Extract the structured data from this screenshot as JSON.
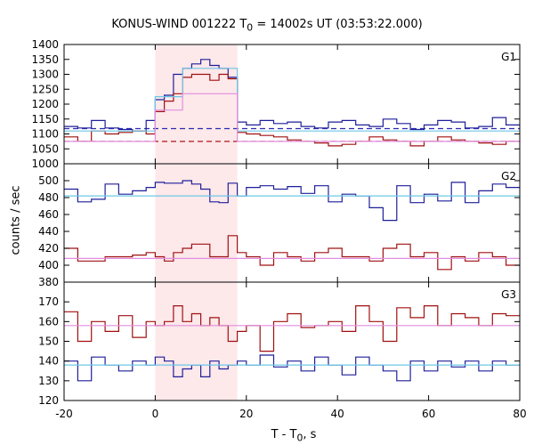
{
  "title_prefix": "KONUS-WIND 001222 T",
  "title_sub": "0",
  "title_suffix": " = 14002s UT (03:53:22.000)",
  "xlabel_prefix": "T - T",
  "xlabel_sub": "0",
  "xlabel_suffix": ", s",
  "ylabel": "counts / sec",
  "colors": {
    "blue": "#1f1f9a",
    "red": "#a01010",
    "cyan": "#6ec8e6",
    "pink": "#e28ee0",
    "shade": "#fde8ea",
    "bgdash_blue": "#2a2ab0",
    "bgdash_red": "#b01818"
  },
  "chart_data": {
    "type": "line",
    "title": "KONUS-WIND 001222 T0 = 14002s UT (03:53:22.000)",
    "xlabel": "T - T0, s",
    "ylabel": "counts / sec",
    "xlim": [
      -20,
      80
    ],
    "x_ticks": [
      -20,
      0,
      20,
      40,
      60,
      80
    ],
    "shaded_interval": [
      0,
      18
    ],
    "panels": [
      {
        "name": "G1",
        "ylim": [
          1000,
          1400
        ],
        "y_ticks": [
          1000,
          1050,
          1100,
          1150,
          1200,
          1250,
          1300,
          1350,
          1400
        ],
        "background_levels": {
          "blue": 1118,
          "red": 1075
        },
        "series": [
          {
            "color": "blue",
            "bin_edges": [
              -20,
              -17,
              -14,
              -11,
              -8,
              -5,
              -2,
              0,
              2,
              4,
              6,
              8,
              10,
              12,
              14,
              16,
              18,
              20,
              23,
              26,
              29,
              32,
              35,
              38,
              41,
              44,
              47,
              50,
              53,
              56,
              59,
              62,
              65,
              68,
              71,
              74,
              77,
              80
            ],
            "values": [
              1125,
              1120,
              1145,
              1120,
              1115,
              1110,
              1145,
              1215,
              1230,
              1300,
              1320,
              1335,
              1350,
              1330,
              1320,
              1290,
              1140,
              1130,
              1145,
              1135,
              1140,
              1125,
              1120,
              1140,
              1145,
              1130,
              1125,
              1150,
              1135,
              1115,
              1130,
              1145,
              1140,
              1120,
              1125,
              1155,
              1130
            ]
          },
          {
            "color": "red",
            "bin_edges": [
              -20,
              -17,
              -14,
              -11,
              -8,
              -5,
              -2,
              0,
              2,
              4,
              6,
              8,
              10,
              12,
              14,
              16,
              18,
              20,
              23,
              26,
              29,
              32,
              35,
              38,
              41,
              44,
              47,
              50,
              53,
              56,
              59,
              62,
              65,
              68,
              71,
              74,
              77,
              80
            ],
            "values": [
              1090,
              1075,
              1110,
              1100,
              1105,
              1110,
              1100,
              1175,
              1210,
              1235,
              1290,
              1300,
              1300,
              1280,
              1300,
              1285,
              1105,
              1100,
              1095,
              1090,
              1080,
              1075,
              1070,
              1060,
              1065,
              1075,
              1090,
              1080,
              1075,
              1060,
              1075,
              1090,
              1080,
              1075,
              1070,
              1065,
              1075
            ]
          }
        ],
        "fits": [
          {
            "color": "cyan",
            "x": [
              -20,
              0,
              0,
              6,
              6,
              18,
              18,
              80
            ],
            "y": [
              1110,
              1110,
              1225,
              1225,
              1320,
              1320,
              1110,
              1110
            ]
          },
          {
            "color": "pink",
            "x": [
              -20,
              0,
              0,
              6,
              6,
              18,
              18,
              80
            ],
            "y": [
              1075,
              1075,
              1180,
              1180,
              1235,
              1235,
              1075,
              1075
            ]
          }
        ]
      },
      {
        "name": "G2",
        "ylim": [
          380,
          520
        ],
        "y_ticks": [
          380,
          400,
          420,
          440,
          460,
          480,
          500
        ],
        "series": [
          {
            "color": "blue",
            "bin_edges": [
              -20,
              -17,
              -14,
              -11,
              -8,
              -5,
              -2,
              0,
              2,
              4,
              6,
              8,
              10,
              12,
              14,
              16,
              18,
              20,
              23,
              26,
              29,
              32,
              35,
              38,
              41,
              44,
              47,
              50,
              53,
              56,
              59,
              62,
              65,
              68,
              71,
              74,
              77,
              80
            ],
            "values": [
              490,
              475,
              478,
              496,
              484,
              488,
              492,
              498,
              497,
              497,
              500,
              496,
              490,
              475,
              474,
              497,
              482,
              492,
              494,
              490,
              493,
              485,
              494,
              475,
              484,
              482,
              468,
              453,
              494,
              474,
              484,
              476,
              498,
              474,
              488,
              496,
              492
            ]
          },
          {
            "color": "red",
            "bin_edges": [
              -20,
              -17,
              -14,
              -11,
              -8,
              -5,
              -2,
              0,
              2,
              4,
              6,
              8,
              10,
              12,
              14,
              16,
              18,
              20,
              23,
              26,
              29,
              32,
              35,
              38,
              41,
              44,
              47,
              50,
              53,
              56,
              59,
              62,
              65,
              68,
              71,
              74,
              77,
              80
            ],
            "values": [
              420,
              405,
              405,
              410,
              410,
              412,
              415,
              410,
              405,
              415,
              420,
              425,
              425,
              410,
              410,
              435,
              415,
              410,
              400,
              415,
              410,
              405,
              415,
              420,
              410,
              410,
              405,
              420,
              425,
              410,
              415,
              395,
              410,
              405,
              415,
              410,
              400
            ]
          }
        ],
        "fits": [
          {
            "color": "cyan",
            "x": [
              -20,
              80
            ],
            "y": [
              482,
              482
            ]
          },
          {
            "color": "pink",
            "x": [
              -20,
              80
            ],
            "y": [
              408,
              408
            ]
          }
        ]
      },
      {
        "name": "G3",
        "ylim": [
          120,
          180
        ],
        "y_ticks": [
          120,
          130,
          140,
          150,
          160,
          170
        ],
        "series": [
          {
            "color": "red",
            "bin_edges": [
              -20,
              -17,
              -14,
              -11,
              -8,
              -5,
              -2,
              0,
              2,
              4,
              6,
              8,
              10,
              12,
              14,
              16,
              18,
              20,
              23,
              26,
              29,
              32,
              35,
              38,
              41,
              44,
              47,
              50,
              53,
              56,
              59,
              62,
              65,
              68,
              71,
              74,
              77,
              80
            ],
            "values": [
              165,
              150,
              160,
              155,
              163,
              152,
              160,
              158,
              160,
              168,
              160,
              164,
              158,
              162,
              158,
              150,
              155,
              158,
              145,
              160,
              164,
              157,
              158,
              160,
              155,
              168,
              160,
              150,
              167,
              162,
              168,
              158,
              164,
              162,
              158,
              164,
              163
            ]
          },
          {
            "color": "blue",
            "bin_edges": [
              -20,
              -17,
              -14,
              -11,
              -8,
              -5,
              -2,
              0,
              2,
              4,
              6,
              8,
              10,
              12,
              14,
              16,
              18,
              20,
              23,
              26,
              29,
              32,
              35,
              38,
              41,
              44,
              47,
              50,
              53,
              56,
              59,
              62,
              65,
              68,
              71,
              74,
              77,
              80
            ],
            "values": [
              140,
              130,
              142,
              138,
              135,
              140,
              138,
              142,
              140,
              132,
              136,
              138,
              132,
              140,
              136,
              138,
              140,
              138,
              143,
              137,
              140,
              135,
              142,
              138,
              133,
              142,
              138,
              135,
              130,
              140,
              135,
              140,
              137,
              140,
              135,
              140,
              138
            ]
          }
        ],
        "fits": [
          {
            "color": "pink",
            "x": [
              -20,
              80
            ],
            "y": [
              158,
              158
            ]
          },
          {
            "color": "cyan",
            "x": [
              -20,
              80
            ],
            "y": [
              138,
              138
            ]
          }
        ]
      }
    ]
  }
}
